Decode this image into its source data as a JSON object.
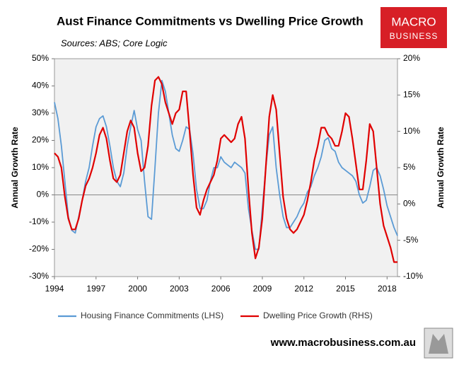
{
  "chart_data": {
    "type": "line",
    "title": "Aust Finance Commitments vs Dwelling Price Growth",
    "subtitle": "Sources: ABS; Core Logic",
    "logo": [
      "MACRO",
      "BUSINESS"
    ],
    "website": "www.macrobusiness.com.au",
    "ylabel": "Annual Growth Rate",
    "y2label": "Annual Growth Rate",
    "xlim": [
      1994,
      2018.75
    ],
    "xticks": [
      1994,
      1997,
      2000,
      2003,
      2006,
      2009,
      2012,
      2015,
      2018
    ],
    "ylim": [
      -30,
      50
    ],
    "yticks": [
      {
        "value": -30,
        "label": "-30%"
      },
      {
        "value": -20,
        "label": "-20%"
      },
      {
        "value": -10,
        "label": "-10%"
      },
      {
        "value": 0,
        "label": "0%"
      },
      {
        "value": 10,
        "label": "10%"
      },
      {
        "value": 20,
        "label": "20%"
      },
      {
        "value": 30,
        "label": "30%"
      },
      {
        "value": 40,
        "label": "40%"
      },
      {
        "value": 50,
        "label": "50%"
      }
    ],
    "y2lim": [
      -10,
      20
    ],
    "y2ticks": [
      {
        "value": -10,
        "label": "-10%"
      },
      {
        "value": -5,
        "label": "-5%"
      },
      {
        "value": 0,
        "label": "0%"
      },
      {
        "value": 5,
        "label": "5%"
      },
      {
        "value": 10,
        "label": "10%"
      },
      {
        "value": 15,
        "label": "15%"
      },
      {
        "value": 20,
        "label": "20%"
      }
    ],
    "grid": false,
    "legend": "bottom",
    "x": [
      1994,
      1994.25,
      1994.5,
      1994.75,
      1995,
      1995.25,
      1995.5,
      1995.75,
      1996,
      1996.25,
      1996.5,
      1996.75,
      1997,
      1997.25,
      1997.5,
      1997.75,
      1998,
      1998.25,
      1998.5,
      1998.75,
      1999,
      1999.25,
      1999.5,
      1999.75,
      2000,
      2000.25,
      2000.5,
      2000.75,
      2001,
      2001.25,
      2001.5,
      2001.75,
      2002,
      2002.25,
      2002.5,
      2002.75,
      2003,
      2003.25,
      2003.5,
      2003.75,
      2004,
      2004.25,
      2004.5,
      2004.75,
      2005,
      2005.25,
      2005.5,
      2005.75,
      2006,
      2006.25,
      2006.5,
      2006.75,
      2007,
      2007.25,
      2007.5,
      2007.75,
      2008,
      2008.25,
      2008.5,
      2008.75,
      2009,
      2009.25,
      2009.5,
      2009.75,
      2010,
      2010.25,
      2010.5,
      2010.75,
      2011,
      2011.25,
      2011.5,
      2011.75,
      2012,
      2012.25,
      2012.5,
      2012.75,
      2013,
      2013.25,
      2013.5,
      2013.75,
      2014,
      2014.25,
      2014.5,
      2014.75,
      2015,
      2015.25,
      2015.5,
      2015.75,
      2016,
      2016.25,
      2016.5,
      2016.75,
      2017,
      2017.25,
      2017.5,
      2017.75,
      2018,
      2018.25,
      2018.5,
      2018.75
    ],
    "series": [
      {
        "name": "Housing Finance Commitments (LHS)",
        "color": "#5b9bd5",
        "axis": "y",
        "values": [
          34,
          28,
          18,
          5,
          -8,
          -13,
          -14,
          -8,
          -2,
          5,
          10,
          18,
          25,
          28,
          29,
          25,
          18,
          10,
          5,
          3,
          8,
          18,
          25,
          31,
          24,
          20,
          5,
          -8,
          -9,
          10,
          30,
          42,
          38,
          30,
          22,
          17,
          16,
          20,
          25,
          24,
          15,
          2,
          -5,
          -5,
          -2,
          5,
          10,
          10,
          14,
          12,
          11,
          10,
          12,
          11,
          10,
          8,
          -5,
          -13,
          -20,
          -20,
          -5,
          10,
          22,
          25,
          10,
          0,
          -8,
          -12,
          -12,
          -10,
          -8,
          -5,
          -3,
          1,
          3,
          7,
          10,
          14,
          20,
          21,
          17,
          16,
          12,
          10,
          9,
          8,
          7,
          5,
          0,
          -3,
          -2,
          3,
          9,
          10,
          7,
          2,
          -4,
          -8,
          -12,
          -15
        ]
      },
      {
        "name": "Dwelling Price Growth (RHS)",
        "color": "#e00000",
        "axis": "y2",
        "values": [
          7,
          6.5,
          5,
          1,
          -2,
          -3.5,
          -3.5,
          -2,
          0.5,
          2.5,
          3.5,
          5,
          7,
          9.5,
          10.5,
          9,
          6,
          3.5,
          3,
          4,
          7,
          10,
          11.5,
          10.5,
          7,
          4.5,
          5,
          8,
          13.5,
          17,
          17.5,
          16.5,
          14,
          12.5,
          11,
          12.5,
          13,
          15.5,
          15.5,
          10,
          4,
          -0.5,
          -1.5,
          0.5,
          2,
          3,
          4,
          6,
          9,
          9.5,
          9,
          8.5,
          9,
          11,
          12,
          9,
          2,
          -4,
          -7.5,
          -6,
          -2,
          5,
          12,
          15,
          13,
          7,
          1,
          -2,
          -3.5,
          -4,
          -3.5,
          -2.5,
          -1.5,
          0.5,
          3,
          6,
          8,
          10.5,
          10.5,
          9.5,
          9,
          8,
          8,
          10,
          12.5,
          12,
          9,
          5.5,
          2,
          2,
          6,
          11,
          10,
          5,
          0,
          -3,
          -4.5,
          -6,
          -8,
          -8
        ]
      }
    ]
  }
}
